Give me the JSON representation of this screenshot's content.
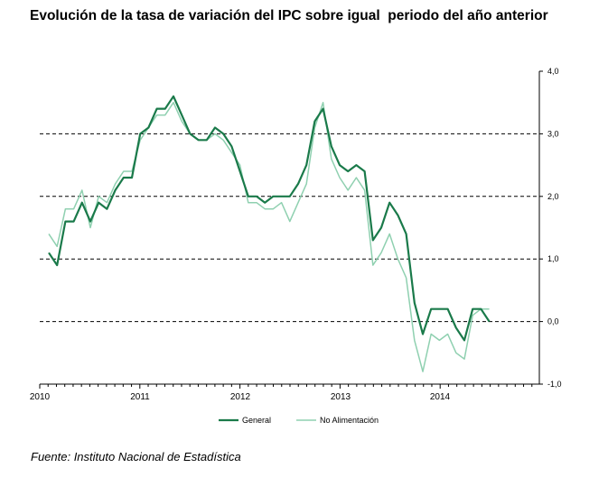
{
  "title": "Evolución de la tasa de variación del IPC sobre igual  periodo del año anterior",
  "source": "Fuente: Instituto Nacional de Estadística",
  "colors": {
    "general": "#1a7a4a",
    "no_alimentacion": "#8fd0b0",
    "grid": "#000000"
  },
  "chart_data": {
    "type": "line",
    "title": "Evolución de la tasa de variación del IPC sobre igual  periodo del año anterior",
    "xlabel": "",
    "ylabel": "",
    "ylim": [
      -1.0,
      4.0
    ],
    "y_ticks": [
      "4,0",
      "3,0",
      "2,0",
      "1,0",
      "0,0",
      "-1,0"
    ],
    "y_tick_values": [
      4,
      3,
      2,
      1,
      0,
      -1
    ],
    "gridlines": [
      3,
      2,
      1,
      0
    ],
    "grid_style": "dashed",
    "x_tick_labels": [
      "2010",
      "2011",
      "2012",
      "2013",
      "2014"
    ],
    "x": [
      "2010-01",
      "2010-02",
      "2010-03",
      "2010-04",
      "2010-05",
      "2010-06",
      "2010-07",
      "2010-08",
      "2010-09",
      "2010-10",
      "2010-11",
      "2010-12",
      "2011-01",
      "2011-02",
      "2011-03",
      "2011-04",
      "2011-05",
      "2011-06",
      "2011-07",
      "2011-08",
      "2011-09",
      "2011-10",
      "2011-11",
      "2011-12",
      "2012-01",
      "2012-02",
      "2012-03",
      "2012-04",
      "2012-05",
      "2012-06",
      "2012-07",
      "2012-08",
      "2012-09",
      "2012-10",
      "2012-11",
      "2012-12",
      "2013-01",
      "2013-02",
      "2013-03",
      "2013-04",
      "2013-05",
      "2013-06",
      "2013-07",
      "2013-08",
      "2013-09",
      "2013-10",
      "2013-11",
      "2013-12",
      "2014-01",
      "2014-02",
      "2014-03",
      "2014-04",
      "2014-05",
      "2014-06"
    ],
    "legend_position": "bottom",
    "series": [
      {
        "name": "General",
        "values": [
          1.1,
          0.9,
          1.6,
          1.6,
          1.9,
          1.6,
          1.9,
          1.8,
          2.1,
          2.3,
          2.3,
          3.0,
          3.1,
          3.4,
          3.4,
          3.6,
          3.3,
          3.0,
          2.9,
          2.9,
          3.1,
          3.0,
          2.8,
          2.4,
          2.0,
          2.0,
          1.9,
          2.0,
          2.0,
          2.0,
          2.2,
          2.5,
          3.2,
          3.4,
          2.8,
          2.5,
          2.4,
          2.5,
          2.4,
          1.3,
          1.5,
          1.9,
          1.7,
          1.4,
          0.3,
          -0.2,
          0.2,
          0.2,
          0.2,
          -0.1,
          -0.3,
          0.2,
          0.2,
          0.0
        ]
      },
      {
        "name": "No Alimentación",
        "values": [
          1.4,
          1.2,
          1.8,
          1.8,
          2.1,
          1.5,
          2.0,
          1.9,
          2.2,
          2.4,
          2.4,
          2.9,
          3.1,
          3.3,
          3.3,
          3.5,
          3.2,
          3.0,
          2.9,
          2.9,
          3.0,
          2.9,
          2.7,
          2.5,
          1.9,
          1.9,
          1.8,
          1.8,
          1.9,
          1.6,
          1.9,
          2.2,
          3.1,
          3.5,
          2.6,
          2.3,
          2.1,
          2.3,
          2.1,
          0.9,
          1.1,
          1.4,
          1.0,
          0.7,
          -0.3,
          -0.8,
          -0.2,
          -0.3,
          -0.2,
          -0.5,
          -0.6,
          0.1,
          0.2,
          0.2
        ]
      }
    ]
  }
}
